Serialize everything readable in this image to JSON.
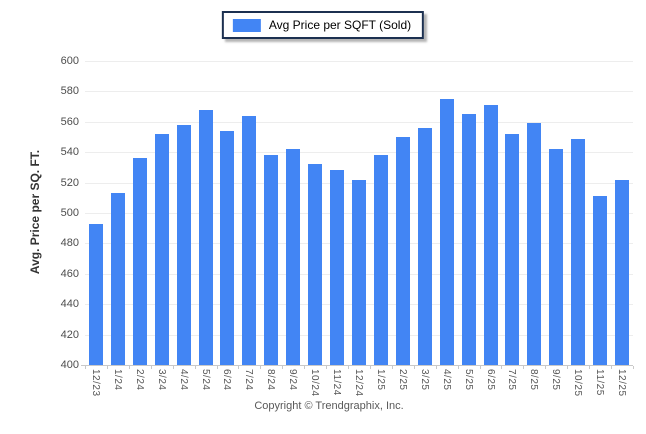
{
  "legend": {
    "label": "Avg Price per SQFT (Sold)",
    "swatch_color": "#4285f4"
  },
  "chart_data": {
    "type": "bar",
    "title": "",
    "xlabel": "",
    "ylabel": "Avg. Price per SQ. FT.",
    "ylim": [
      400,
      600
    ],
    "ytick_step": 20,
    "grid": "horizontal",
    "legend_position": "top-center",
    "bar_color": "#4285f4",
    "gridline_color": "#ededed",
    "axis_line_color": "#c9c9c9",
    "tick_label_color": "#4d4d4d",
    "categories": [
      "12/23",
      "1/24",
      "2/24",
      "3/24",
      "4/24",
      "5/24",
      "6/24",
      "7/24",
      "8/24",
      "9/24",
      "10/24",
      "11/24",
      "12/24",
      "1/25",
      "2/25",
      "3/25",
      "4/25",
      "5/25",
      "6/25",
      "7/25",
      "8/25",
      "9/25",
      "10/25",
      "11/25",
      "12/25"
    ],
    "series": [
      {
        "name": "Avg Price per SQFT (Sold)",
        "values": [
          493,
          513,
          536,
          552,
          558,
          568,
          554,
          564,
          538,
          542,
          532,
          528,
          522,
          538,
          550,
          556,
          575,
          565,
          571,
          552,
          559,
          542,
          549,
          511,
          522
        ]
      }
    ]
  },
  "footer": {
    "copyright": "Copyright © Trendgraphix, Inc."
  }
}
